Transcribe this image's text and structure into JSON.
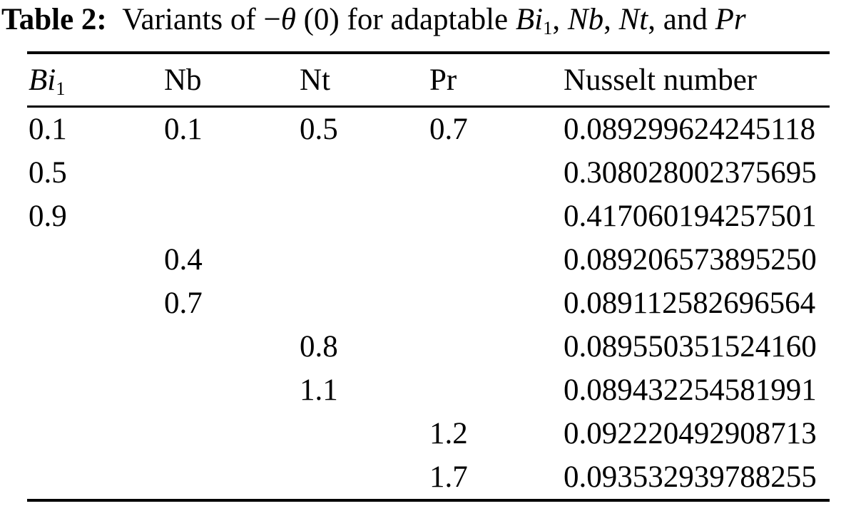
{
  "caption": {
    "label": "Table 2:",
    "part_variants": "Variants of −",
    "theta": "θ",
    "part_mid": " (0) for adaptable ",
    "var_bi": "Bi",
    "var_bi_sub": "1",
    "sep_1": ", ",
    "var_nb": "Nb",
    "sep_2": ", ",
    "var_nt": "Nt",
    "sep_3": ", and ",
    "var_pr": "Pr"
  },
  "table": {
    "headers": {
      "bi_main": "Bi",
      "bi_sub": "1",
      "nb": "Nb",
      "nt": "Nt",
      "pr": "Pr",
      "nusselt": "Nusselt number"
    },
    "rows": [
      [
        "0.1",
        "0.1",
        "0.5",
        "0.7",
        "0.089299624245118"
      ],
      [
        "0.5",
        "",
        "",
        "",
        "0.308028002375695"
      ],
      [
        "0.9",
        "",
        "",
        "",
        "0.417060194257501"
      ],
      [
        "",
        "0.4",
        "",
        "",
        "0.089206573895250"
      ],
      [
        "",
        "0.7",
        "",
        "",
        "0.089112582696564"
      ],
      [
        "",
        "",
        "0.8",
        "",
        "0.089550351524160"
      ],
      [
        "",
        "",
        "1.1",
        "",
        "0.089432254581991"
      ],
      [
        "",
        "",
        "",
        "1.2",
        "0.092220492908713"
      ],
      [
        "",
        "",
        "",
        "1.7",
        "0.093532939788255"
      ]
    ]
  },
  "colors": {
    "text": "#000000",
    "background": "#ffffff",
    "rule": "#000000"
  }
}
